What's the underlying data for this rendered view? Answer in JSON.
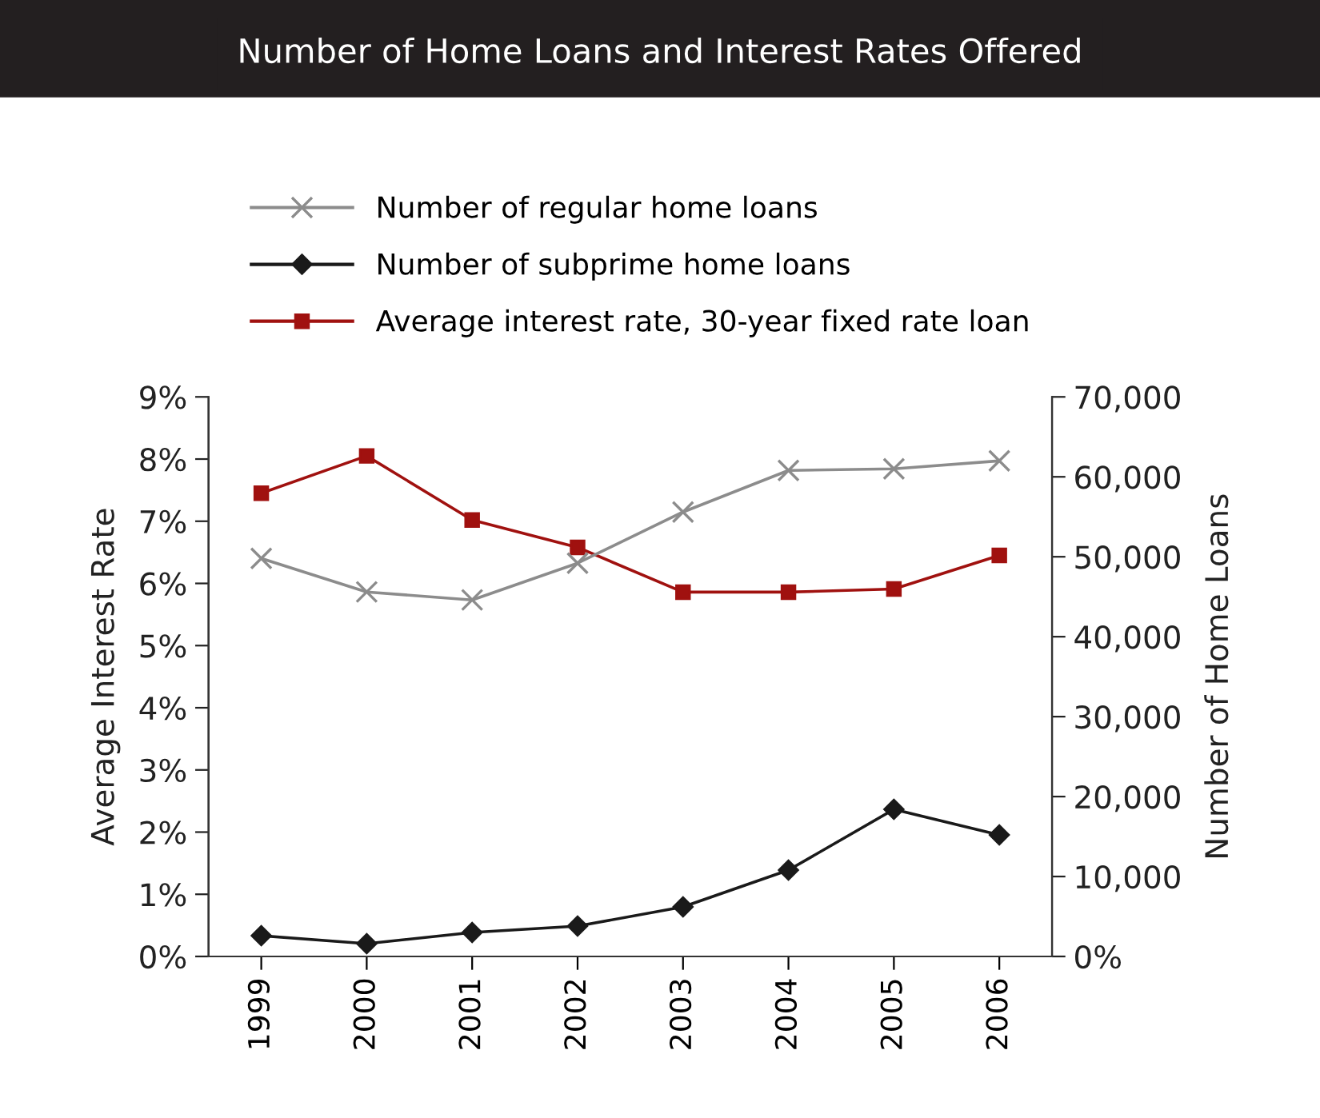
{
  "chart_data": {
    "type": "line",
    "title": "Number of Home Loans and Interest Rates Offered",
    "ylabel": "Average Interest Rate",
    "y2label": "Number of Home Loans",
    "categories": [
      "1999",
      "2000",
      "2001",
      "2002",
      "2003",
      "2004",
      "2005",
      "2006"
    ],
    "series": [
      {
        "name": "Number of regular home loans",
        "color": "#8c8c8c",
        "marker": "cross",
        "axis": "y2",
        "values": [
          49800,
          45600,
          44600,
          49200,
          55600,
          60800,
          61000,
          62000
        ]
      },
      {
        "name": "Number of subprime home loans",
        "color": "#1a1a1a",
        "marker": "diamond",
        "axis": "y2",
        "values": [
          2600,
          1600,
          3000,
          3800,
          6200,
          10800,
          18400,
          15200
        ]
      },
      {
        "name": "Average interest rate, 30-year fixed rate loan",
        "color": "#a0110f",
        "marker": "square",
        "values": [
          7.45,
          8.05,
          7.02,
          6.58,
          5.86,
          5.86,
          5.91,
          6.45
        ]
      }
    ],
    "ylim": [
      0,
      9
    ],
    "yticks": [
      {
        "value": 0,
        "label": "0%"
      },
      {
        "value": 1,
        "label": "1%"
      },
      {
        "value": 2,
        "label": "2%"
      },
      {
        "value": 3,
        "label": "3%"
      },
      {
        "value": 4,
        "label": "4%"
      },
      {
        "value": 5,
        "label": "5%"
      },
      {
        "value": 6,
        "label": "6%"
      },
      {
        "value": 7,
        "label": "7%"
      },
      {
        "value": 8,
        "label": "8%"
      },
      {
        "value": 9,
        "label": "9%"
      }
    ],
    "y2lim": [
      0,
      70000
    ],
    "y2ticks": [
      {
        "value": 0,
        "label": "0%"
      },
      {
        "value": 10000,
        "label": "10,000"
      },
      {
        "value": 20000,
        "label": "20,000"
      },
      {
        "value": 30000,
        "label": "30,000"
      },
      {
        "value": 40000,
        "label": "40,000"
      },
      {
        "value": 50000,
        "label": "50,000"
      },
      {
        "value": 60000,
        "label": "60,000"
      },
      {
        "value": 70000,
        "label": "70,000"
      }
    ],
    "legend": "top",
    "grid": false,
    "line_style": "solid"
  }
}
